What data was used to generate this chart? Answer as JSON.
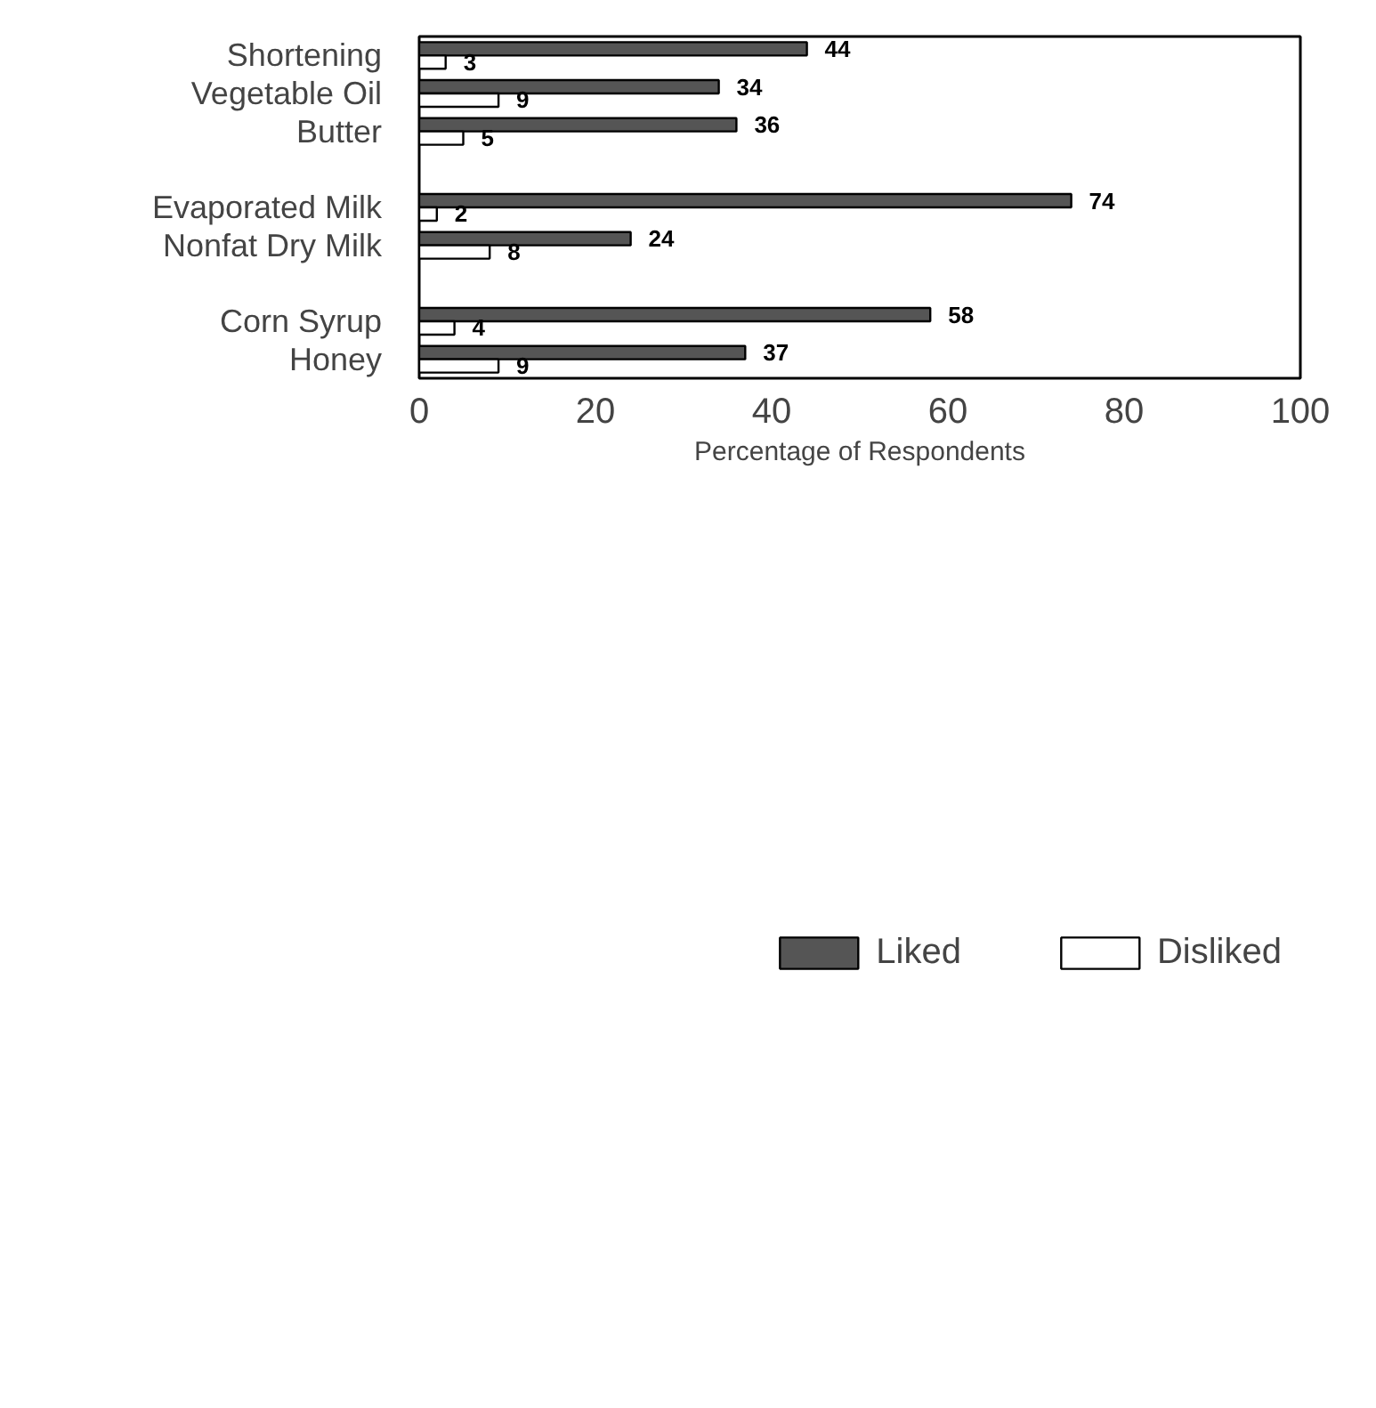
{
  "chart_data": {
    "type": "bar",
    "orientation": "horizontal",
    "xlabel": "Percentage of Respondents",
    "categories": [
      "Shortening",
      "Vegetable Oil",
      "Butter",
      null,
      "Evaporated Milk",
      "Nonfat Dry Milk",
      null,
      "Corn Syrup",
      "Honey"
    ],
    "series": [
      {
        "name": "Liked",
        "color": "#555555",
        "values": [
          44,
          34,
          36,
          null,
          74,
          24,
          null,
          58,
          37
        ]
      },
      {
        "name": "Disliked",
        "color": "#ffffff",
        "values": [
          3,
          9,
          5,
          null,
          2,
          8,
          null,
          4,
          9
        ]
      }
    ],
    "xlim": [
      0,
      100
    ],
    "xticks": [
      0,
      20,
      40,
      60,
      80,
      100
    ],
    "grid": false,
    "legend": "bottom",
    "data_labels": true
  }
}
